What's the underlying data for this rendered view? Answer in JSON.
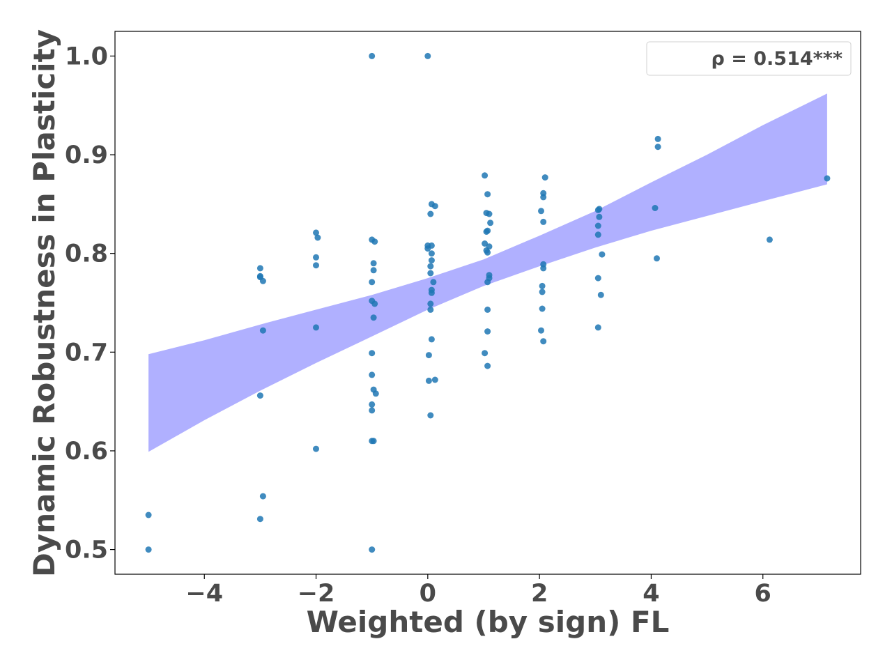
{
  "chart_data": {
    "type": "scatter",
    "title": "",
    "xlabel": "Weighted (by sign) FL",
    "ylabel": "Dynamic Robustness in Plasticity",
    "xlim": [
      -5.6,
      7.75
    ],
    "ylim": [
      0.475,
      1.025
    ],
    "xticks": [
      -4,
      -2,
      0,
      2,
      4,
      6
    ],
    "xtick_labels": [
      "−4",
      "−2",
      "0",
      "2",
      "4",
      "6"
    ],
    "yticks": [
      0.5,
      0.6,
      0.7,
      0.8,
      0.9,
      1.0
    ],
    "ytick_labels": [
      "0.5",
      "0.6",
      "0.7",
      "0.8",
      "0.9",
      "1.0"
    ],
    "grid": false,
    "legend": {
      "placement": "top-right",
      "label": "ρ = 0.514***"
    },
    "colors": {
      "points": "#1f77b4",
      "band": "#b0b0ff",
      "text": "#4a4a4a"
    },
    "confidence_band": {
      "x": [
        -5.0,
        -4.0,
        -3.0,
        -2.0,
        -1.0,
        0.0,
        1.0,
        2.0,
        3.0,
        4.0,
        5.0,
        6.0,
        7.15
      ],
      "lower": [
        0.599,
        0.631,
        0.661,
        0.689,
        0.716,
        0.743,
        0.767,
        0.787,
        0.806,
        0.823,
        0.838,
        0.853,
        0.87
      ],
      "upper": [
        0.698,
        0.712,
        0.728,
        0.743,
        0.758,
        0.775,
        0.794,
        0.818,
        0.843,
        0.872,
        0.9,
        0.93,
        0.962
      ]
    },
    "points": [
      {
        "x": -5.0,
        "y": 0.535
      },
      {
        "x": -5.0,
        "y": 0.5
      },
      {
        "x": -3.0,
        "y": 0.785
      },
      {
        "x": -3.0,
        "y": 0.777
      },
      {
        "x": -3.0,
        "y": 0.776
      },
      {
        "x": -2.95,
        "y": 0.772
      },
      {
        "x": -2.95,
        "y": 0.722
      },
      {
        "x": -3.0,
        "y": 0.656
      },
      {
        "x": -2.95,
        "y": 0.554
      },
      {
        "x": -3.0,
        "y": 0.531
      },
      {
        "x": -2.0,
        "y": 0.821
      },
      {
        "x": -1.97,
        "y": 0.816
      },
      {
        "x": -2.0,
        "y": 0.796
      },
      {
        "x": -2.0,
        "y": 0.788
      },
      {
        "x": -2.0,
        "y": 0.725
      },
      {
        "x": -2.0,
        "y": 0.602
      },
      {
        "x": -1.0,
        "y": 1.0
      },
      {
        "x": -1.0,
        "y": 0.814
      },
      {
        "x": -0.95,
        "y": 0.812
      },
      {
        "x": -0.97,
        "y": 0.79
      },
      {
        "x": -0.97,
        "y": 0.783
      },
      {
        "x": -1.0,
        "y": 0.771
      },
      {
        "x": -1.0,
        "y": 0.752
      },
      {
        "x": -0.95,
        "y": 0.749
      },
      {
        "x": -0.97,
        "y": 0.735
      },
      {
        "x": -1.0,
        "y": 0.699
      },
      {
        "x": -1.0,
        "y": 0.677
      },
      {
        "x": -0.97,
        "y": 0.662
      },
      {
        "x": -0.93,
        "y": 0.658
      },
      {
        "x": -1.0,
        "y": 0.647
      },
      {
        "x": -1.0,
        "y": 0.641
      },
      {
        "x": -1.0,
        "y": 0.61
      },
      {
        "x": -0.97,
        "y": 0.61
      },
      {
        "x": -1.0,
        "y": 0.5
      },
      {
        "x": 0.0,
        "y": 1.0
      },
      {
        "x": 0.07,
        "y": 0.85
      },
      {
        "x": 0.13,
        "y": 0.848
      },
      {
        "x": 0.05,
        "y": 0.84
      },
      {
        "x": 0.0,
        "y": 0.808
      },
      {
        "x": 0.07,
        "y": 0.808
      },
      {
        "x": 0.0,
        "y": 0.805
      },
      {
        "x": 0.07,
        "y": 0.8
      },
      {
        "x": 0.07,
        "y": 0.793
      },
      {
        "x": 0.05,
        "y": 0.787
      },
      {
        "x": 0.05,
        "y": 0.78
      },
      {
        "x": 0.1,
        "y": 0.771
      },
      {
        "x": 0.07,
        "y": 0.763
      },
      {
        "x": 0.07,
        "y": 0.76
      },
      {
        "x": 0.05,
        "y": 0.749
      },
      {
        "x": 0.05,
        "y": 0.743
      },
      {
        "x": 0.07,
        "y": 0.713
      },
      {
        "x": 0.02,
        "y": 0.697
      },
      {
        "x": 0.13,
        "y": 0.672
      },
      {
        "x": 0.02,
        "y": 0.671
      },
      {
        "x": 0.05,
        "y": 0.636
      },
      {
        "x": 1.02,
        "y": 0.879
      },
      {
        "x": 1.07,
        "y": 0.86
      },
      {
        "x": 1.05,
        "y": 0.841
      },
      {
        "x": 1.1,
        "y": 0.84
      },
      {
        "x": 1.12,
        "y": 0.831
      },
      {
        "x": 1.07,
        "y": 0.823
      },
      {
        "x": 1.05,
        "y": 0.822
      },
      {
        "x": 1.02,
        "y": 0.81
      },
      {
        "x": 1.1,
        "y": 0.807
      },
      {
        "x": 1.05,
        "y": 0.803
      },
      {
        "x": 1.07,
        "y": 0.801
      },
      {
        "x": 1.1,
        "y": 0.778
      },
      {
        "x": 1.1,
        "y": 0.775
      },
      {
        "x": 1.07,
        "y": 0.771
      },
      {
        "x": 1.07,
        "y": 0.743
      },
      {
        "x": 1.07,
        "y": 0.721
      },
      {
        "x": 1.02,
        "y": 0.699
      },
      {
        "x": 1.07,
        "y": 0.686
      },
      {
        "x": 2.1,
        "y": 0.877
      },
      {
        "x": 2.07,
        "y": 0.861
      },
      {
        "x": 2.07,
        "y": 0.857
      },
      {
        "x": 2.03,
        "y": 0.843
      },
      {
        "x": 2.07,
        "y": 0.832
      },
      {
        "x": 2.07,
        "y": 0.789
      },
      {
        "x": 2.07,
        "y": 0.785
      },
      {
        "x": 2.05,
        "y": 0.767
      },
      {
        "x": 2.05,
        "y": 0.761
      },
      {
        "x": 2.05,
        "y": 0.744
      },
      {
        "x": 2.03,
        "y": 0.722
      },
      {
        "x": 2.07,
        "y": 0.711
      },
      {
        "x": 3.07,
        "y": 0.845
      },
      {
        "x": 3.05,
        "y": 0.844
      },
      {
        "x": 3.07,
        "y": 0.837
      },
      {
        "x": 3.05,
        "y": 0.828
      },
      {
        "x": 3.05,
        "y": 0.819
      },
      {
        "x": 3.12,
        "y": 0.799
      },
      {
        "x": 3.05,
        "y": 0.775
      },
      {
        "x": 3.1,
        "y": 0.758
      },
      {
        "x": 3.05,
        "y": 0.725
      },
      {
        "x": 4.12,
        "y": 0.916
      },
      {
        "x": 4.12,
        "y": 0.908
      },
      {
        "x": 4.07,
        "y": 0.846
      },
      {
        "x": 4.1,
        "y": 0.795
      },
      {
        "x": 6.12,
        "y": 0.814
      },
      {
        "x": 7.15,
        "y": 0.876
      }
    ]
  }
}
